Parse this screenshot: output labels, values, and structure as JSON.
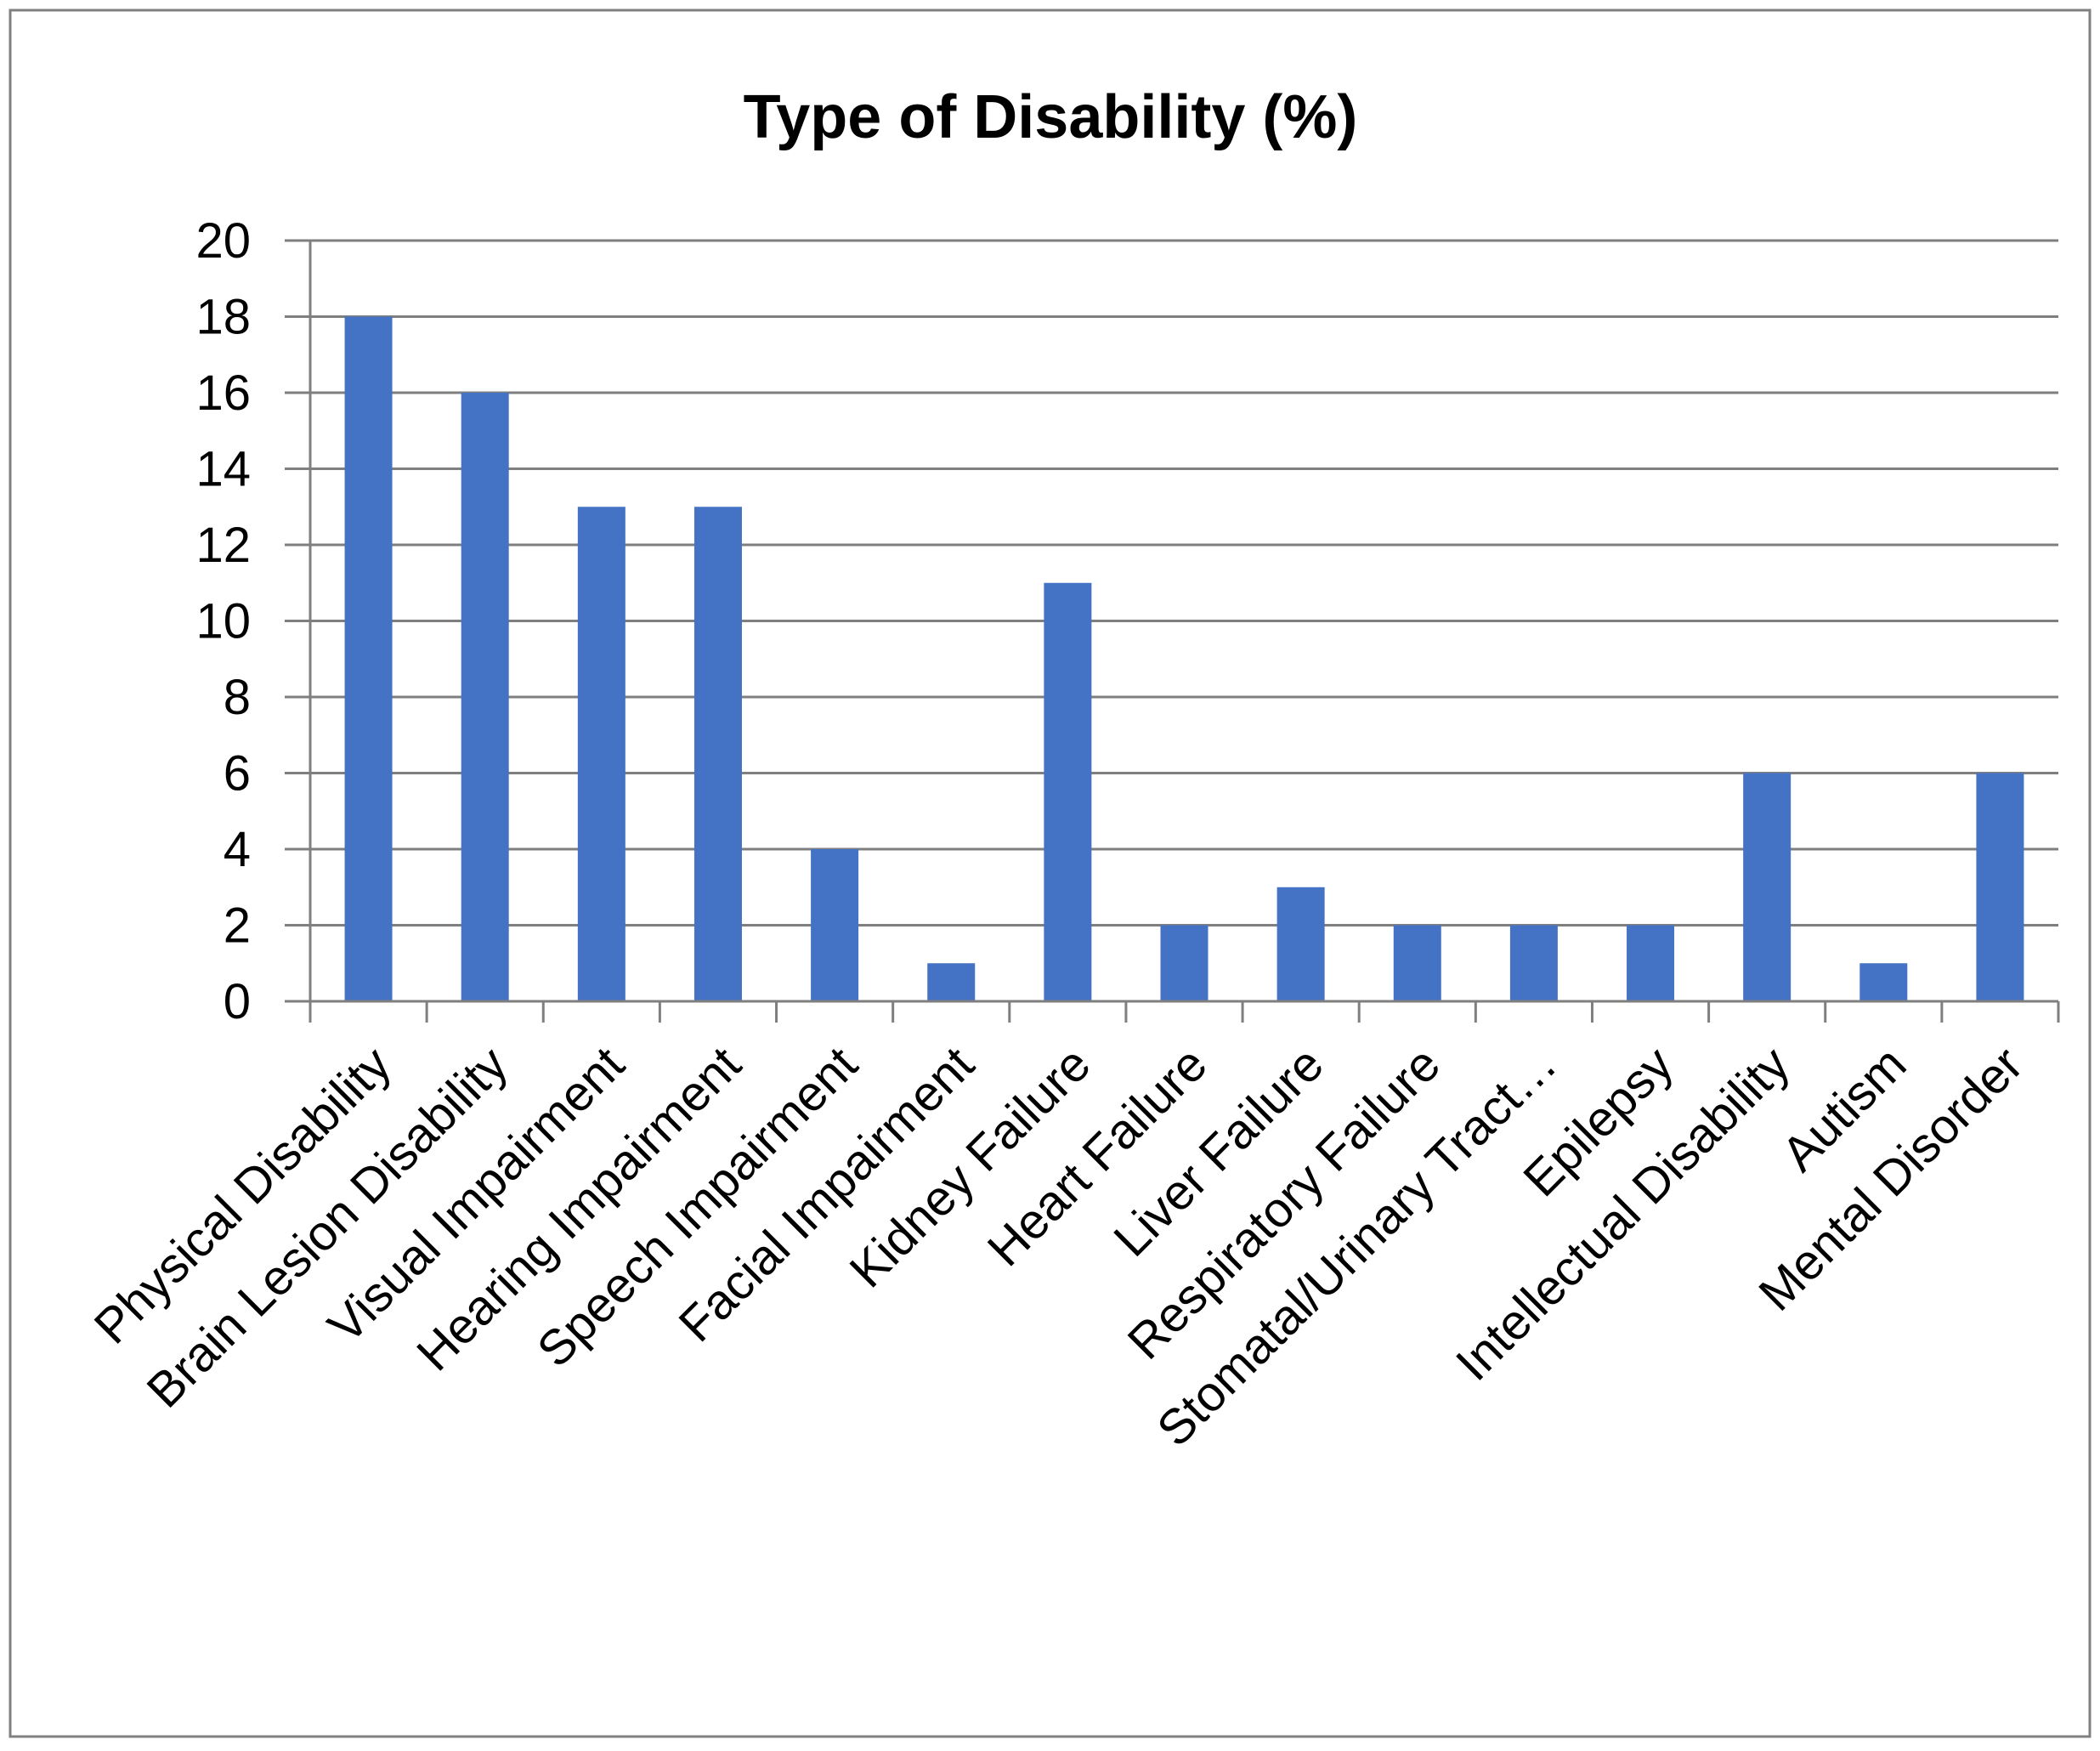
{
  "chart_data": {
    "type": "bar",
    "title": "Type of Disability (%)",
    "xlabel": "",
    "ylabel": "",
    "ylim": [
      0,
      20
    ],
    "yticks": [
      "0",
      "2",
      "4",
      "6",
      "8",
      "10",
      "12",
      "14",
      "16",
      "18",
      "20"
    ],
    "grid": true,
    "categories": [
      "Physical Disability",
      "Brain Lesion Disability",
      "Visual Impairment",
      "Hearing Impairment",
      "Speech Impairment",
      "Facial Impairment",
      "Kidney Failure",
      "Heart Failure",
      "Liver Failure",
      "Respiratory Failure",
      "Stomatal/Urinary Tract…",
      "Epilepsy",
      "Intellectual Disability",
      "Autism",
      "Mental Disorder"
    ],
    "values": [
      18,
      16,
      13,
      13,
      4,
      1,
      11,
      2,
      3,
      2,
      2,
      2,
      6,
      1,
      6
    ],
    "bar_color": "#4472C4",
    "grid_color": "#7f7f7f",
    "border_color": "#808080"
  }
}
